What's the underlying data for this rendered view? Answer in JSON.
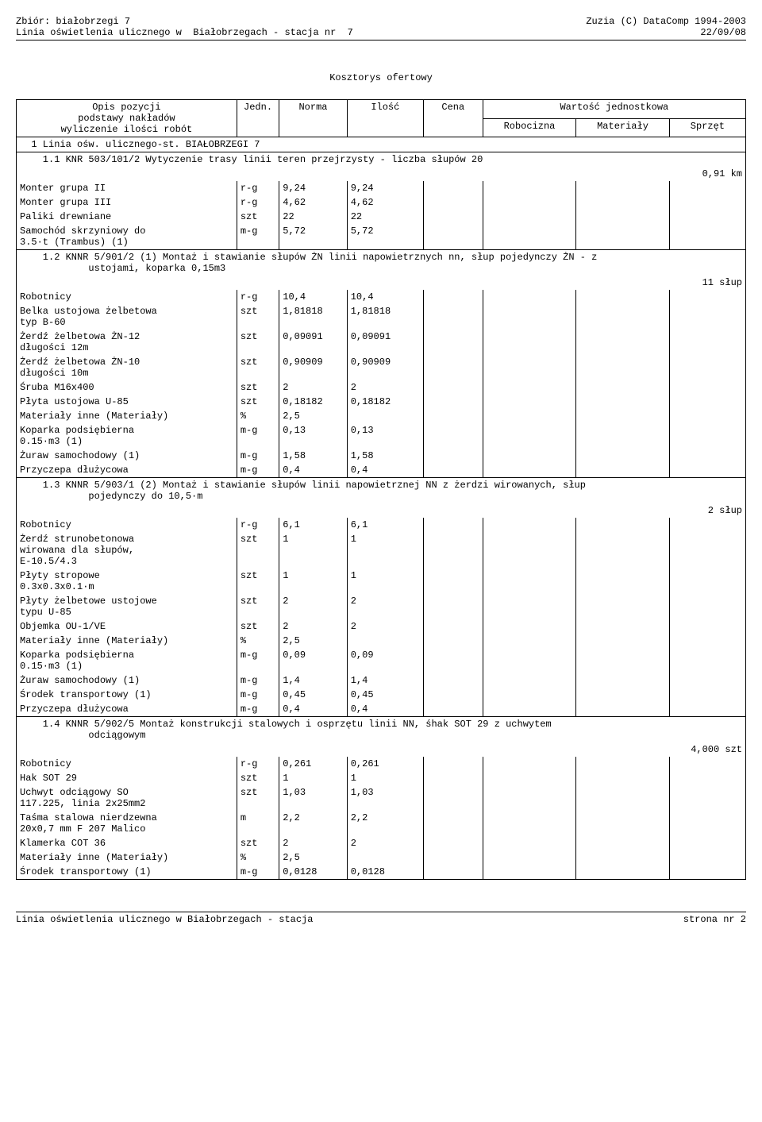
{
  "header": {
    "left_line1": "Zbiór: białobrzegi 7",
    "left_line2": "Linia oświetlenia ulicznego w  Białobrzegach - stacja nr  7",
    "right_line1": "Zuzia (C) DataComp 1994-2003",
    "right_line2": "22/09/08"
  },
  "title": "Kosztorys ofertowy",
  "columns": {
    "opis": "Opis pozycji",
    "opis_sub": "podstawy nakładów\nwyliczenie ilości robót",
    "jedn": "Jedn.",
    "norma": "Norma",
    "ilosc": "Ilość",
    "cena": "Cena",
    "wartosc": "Wartość jednostkowa",
    "robocizna": "Robocizna",
    "materialy": "Materiały",
    "sprzet": "Sprzęt"
  },
  "section_header": "1 Linia ośw. ulicznego-st. BIAŁOBRZEGI 7",
  "items": [
    {
      "title": "1.1 KNR 503/101/2 Wytyczenie trasy linii teren przejrzysty - liczba słupów 20",
      "qty": "0,91 km",
      "rows": [
        {
          "desc": "Monter grupa II",
          "unit": "r-g",
          "norma": "9,24",
          "ilosc": "9,24"
        },
        {
          "desc": "Monter grupa III",
          "unit": "r-g",
          "norma": "4,62",
          "ilosc": "4,62"
        },
        {
          "desc": "Paliki drewniane",
          "unit": "szt",
          "norma": "22",
          "ilosc": "22"
        },
        {
          "desc": "Samochód skrzyniowy do\n3.5·t (Trambus) (1)",
          "unit": "m-g",
          "norma": "5,72",
          "ilosc": "5,72"
        }
      ]
    },
    {
      "title": "1.2 KNNR 5/901/2 (1) Montaż i stawianie słupów ŻN linii napowietrznych nn, słup pojedynczy ŻN - z\n            ustojami, koparka 0,15m3",
      "qty": "11 słup",
      "rows": [
        {
          "desc": "Robotnicy",
          "unit": "r-g",
          "norma": "10,4",
          "ilosc": "10,4"
        },
        {
          "desc": "Belka ustojowa żelbetowa\ntyp B-60",
          "unit": "szt",
          "norma": "1,81818",
          "ilosc": "1,81818"
        },
        {
          "desc": "Żerdź żelbetowa ŻN-12\ndługości 12m",
          "unit": "szt",
          "norma": "0,09091",
          "ilosc": "0,09091"
        },
        {
          "desc": "Żerdź żelbetowa ŻN-10\ndługości 10m",
          "unit": "szt",
          "norma": "0,90909",
          "ilosc": "0,90909"
        },
        {
          "desc": "Śruba M16x400",
          "unit": "szt",
          "norma": "2",
          "ilosc": "2"
        },
        {
          "desc": "Płyta ustojowa U-85",
          "unit": "szt",
          "norma": "0,18182",
          "ilosc": "0,18182"
        },
        {
          "desc": "Materiały inne (Materiały)",
          "unit": "%",
          "norma": "2,5",
          "ilosc": ""
        },
        {
          "desc": "Koparka podsiębierna\n0.15·m3 (1)",
          "unit": "m-g",
          "norma": "0,13",
          "ilosc": "0,13"
        },
        {
          "desc": "Żuraw samochodowy (1)",
          "unit": "m-g",
          "norma": "1,58",
          "ilosc": "1,58"
        },
        {
          "desc": "Przyczepa dłużycowa",
          "unit": "m-g",
          "norma": "0,4",
          "ilosc": "0,4"
        }
      ]
    },
    {
      "title": "1.3 KNNR 5/903/1 (2) Montaż i stawianie słupów linii napowietrznej NN z żerdzi wirowanych, słup\n            pojedynczy do 10,5·m",
      "qty": "2 słup",
      "rows": [
        {
          "desc": "Robotnicy",
          "unit": "r-g",
          "norma": "6,1",
          "ilosc": "6,1"
        },
        {
          "desc": "Żerdź strunobetonowa\nwirowana dla słupów,\nE-10.5/4.3",
          "unit": "szt",
          "norma": "1",
          "ilosc": "1"
        },
        {
          "desc": "Płyty stropowe\n0.3x0.3x0.1·m",
          "unit": "szt",
          "norma": "1",
          "ilosc": "1"
        },
        {
          "desc": "Płyty żelbetowe ustojowe\ntypu U-85",
          "unit": "szt",
          "norma": "2",
          "ilosc": "2"
        },
        {
          "desc": "Objemka OU-1/VE",
          "unit": "szt",
          "norma": "2",
          "ilosc": "2"
        },
        {
          "desc": "Materiały inne (Materiały)",
          "unit": "%",
          "norma": "2,5",
          "ilosc": ""
        },
        {
          "desc": "Koparka podsiębierna\n0.15·m3 (1)",
          "unit": "m-g",
          "norma": "0,09",
          "ilosc": "0,09"
        },
        {
          "desc": "Żuraw samochodowy (1)",
          "unit": "m-g",
          "norma": "1,4",
          "ilosc": "1,4"
        },
        {
          "desc": "Środek transportowy (1)",
          "unit": "m-g",
          "norma": "0,45",
          "ilosc": "0,45"
        },
        {
          "desc": "Przyczepa dłużycowa",
          "unit": "m-g",
          "norma": "0,4",
          "ilosc": "0,4"
        }
      ]
    },
    {
      "title": "1.4 KNNR 5/902/5 Montaż konstrukcji stalowych i osprzętu linii NN, śhak SOT 29 z uchwytem\n            odciągowym",
      "qty": "4,000 szt",
      "rows": [
        {
          "desc": "Robotnicy",
          "unit": "r-g",
          "norma": "0,261",
          "ilosc": "0,261"
        },
        {
          "desc": "Hak SOT 29",
          "unit": "szt",
          "norma": "1",
          "ilosc": "1"
        },
        {
          "desc": "Uchwyt odciągowy SO\n117.225, linia 2x25mm2",
          "unit": "szt",
          "norma": "1,03",
          "ilosc": "1,03"
        },
        {
          "desc": "Taśma stalowa nierdzewna\n20x0,7 mm F 207 Malico",
          "unit": "m",
          "norma": "2,2",
          "ilosc": "2,2"
        },
        {
          "desc": "Klamerka COT 36",
          "unit": "szt",
          "norma": "2",
          "ilosc": "2"
        },
        {
          "desc": "Materiały inne (Materiały)",
          "unit": "%",
          "norma": "2,5",
          "ilosc": ""
        },
        {
          "desc": "Środek transportowy (1)",
          "unit": "m-g",
          "norma": "0,0128",
          "ilosc": "0,0128"
        }
      ]
    }
  ],
  "footer": {
    "left": "Linia oświetlenia ulicznego w  Białobrzegach - stacja",
    "right": "strona nr  2"
  },
  "style": {
    "font_family": "Courier New",
    "font_size_pt": 10,
    "text_color": "#000000",
    "background_color": "#ffffff",
    "border_color": "#000000"
  }
}
